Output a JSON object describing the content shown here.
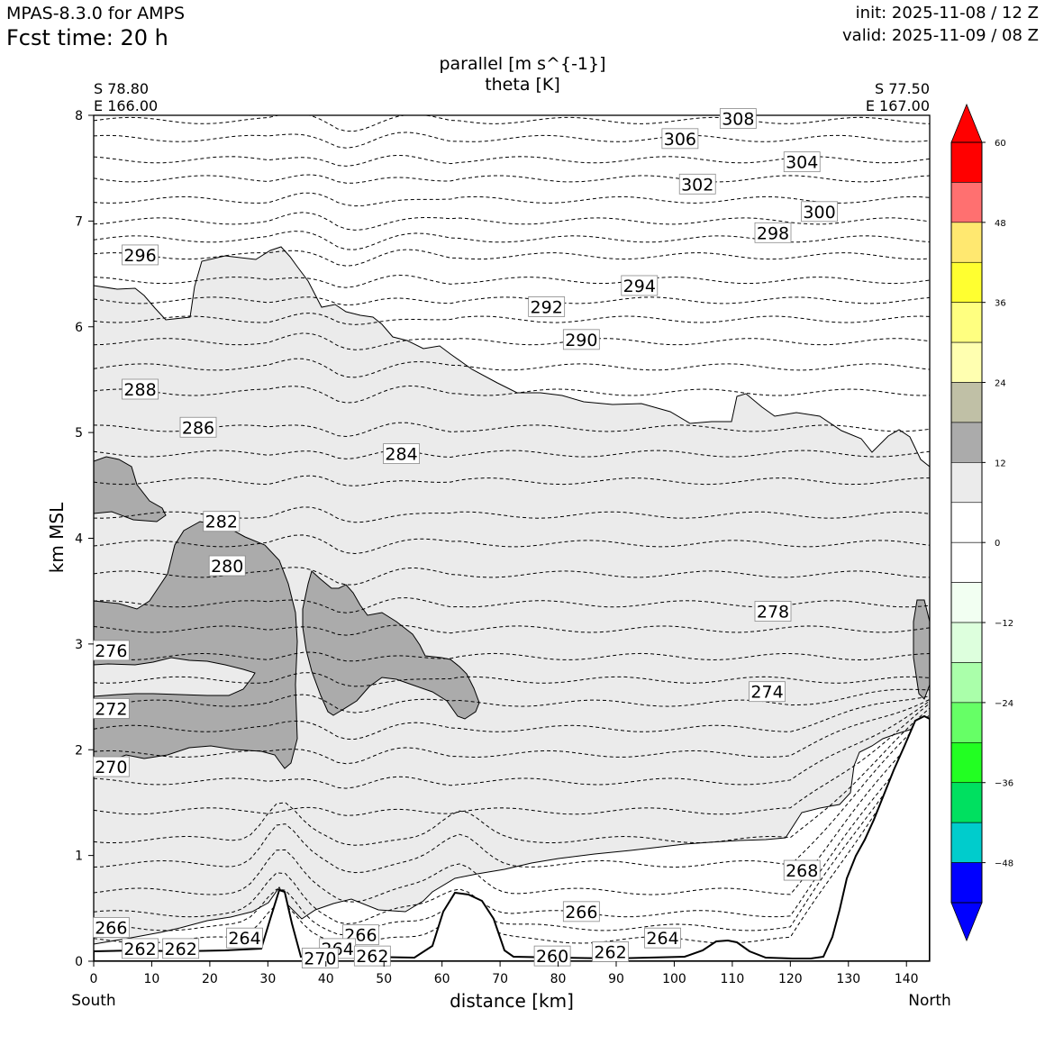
{
  "header": {
    "model": "MPAS-8.3.0 for AMPS",
    "fcst_time": "Fcst time:   20 h",
    "init": "init: 2025-11-08 / 12 Z",
    "valid": "valid: 2025-11-09 / 08 Z"
  },
  "colors": {
    "shade_light": "#ebebeb",
    "shade_dark": "#ababab",
    "terrain_line": "#000000"
  },
  "chart_data": {
    "type": "cross-section contour",
    "title": "parallel [m s^{-1}]",
    "subtitle": "theta [K]",
    "xlabel": "distance [km]",
    "ylabel": "km MSL",
    "xlim": [
      0,
      144
    ],
    "ylim": [
      0,
      8
    ],
    "xticks": [
      "0",
      "10",
      "20",
      "30",
      "40",
      "50",
      "60",
      "70",
      "80",
      "90",
      "100",
      "110",
      "120",
      "130",
      "140"
    ],
    "yticks": [
      "0",
      "1",
      "2",
      "3",
      "4",
      "5",
      "6",
      "7",
      "8"
    ],
    "left_point": {
      "lat": "S 78.80",
      "lon": "E 166.00",
      "end": "South"
    },
    "right_point": {
      "lat": "S 77.50",
      "lon": "E 167.00",
      "end": "North"
    },
    "colorbar": {
      "ticks": [
        "60",
        "48",
        "36",
        "24",
        "12",
        "0",
        "−12",
        "−24",
        "−36",
        "−48"
      ],
      "colors": [
        "#ff0000",
        "#ff7070",
        "#ffe870",
        "#ffff30",
        "#ffff80",
        "#ffffb0",
        "#c0c0a6",
        "#ababab",
        "#ebebeb",
        "#ffffff",
        "#ffffff",
        "#f2fff2",
        "#ddffdd",
        "#aaffaa",
        "#66ff66",
        "#22ff22",
        "#00e060",
        "#00cccc",
        "#0000ff"
      ],
      "over_color": "#ff0000",
      "under_color": "#0000ff"
    },
    "theta_labels": [
      {
        "text": "308",
        "x": 111,
        "z": 7.97
      },
      {
        "text": "306",
        "x": 101,
        "z": 7.78
      },
      {
        "text": "304",
        "x": 122,
        "z": 7.56
      },
      {
        "text": "302",
        "x": 104,
        "z": 7.35
      },
      {
        "text": "300",
        "x": 125,
        "z": 7.09
      },
      {
        "text": "298",
        "x": 117,
        "z": 6.89
      },
      {
        "text": "296",
        "x": 8,
        "z": 6.68
      },
      {
        "text": "294",
        "x": 94,
        "z": 6.39
      },
      {
        "text": "292",
        "x": 78,
        "z": 6.19
      },
      {
        "text": "290",
        "x": 84,
        "z": 5.88
      },
      {
        "text": "288",
        "x": 8,
        "z": 5.41
      },
      {
        "text": "286",
        "x": 18,
        "z": 5.05
      },
      {
        "text": "284",
        "x": 53,
        "z": 4.8
      },
      {
        "text": "282",
        "x": 22,
        "z": 4.16
      },
      {
        "text": "280",
        "x": 23,
        "z": 3.74
      },
      {
        "text": "278",
        "x": 117,
        "z": 3.31
      },
      {
        "text": "276",
        "x": 3,
        "z": 2.94
      },
      {
        "text": "274",
        "x": 116,
        "z": 2.55
      },
      {
        "text": "272",
        "x": 3,
        "z": 2.39
      },
      {
        "text": "270",
        "x": 3,
        "z": 1.84
      },
      {
        "text": "268",
        "x": 122,
        "z": 0.86
      },
      {
        "text": "266",
        "x": 3,
        "z": 0.32
      },
      {
        "text": "266",
        "x": 84,
        "z": 0.47
      },
      {
        "text": "266",
        "x": 46,
        "z": 0.25
      },
      {
        "text": "264",
        "x": 26,
        "z": 0.22
      },
      {
        "text": "264",
        "x": 98,
        "z": 0.22
      },
      {
        "text": "264",
        "x": 42,
        "z": 0.12
      },
      {
        "text": "262",
        "x": 8,
        "z": 0.12
      },
      {
        "text": "262",
        "x": 15,
        "z": 0.12
      },
      {
        "text": "262",
        "x": 48,
        "z": 0.05
      },
      {
        "text": "262",
        "x": 89,
        "z": 0.09
      },
      {
        "text": "260",
        "x": 79,
        "z": 0.05
      },
      {
        "text": "270",
        "x": 39,
        "z": 0.03
      }
    ]
  }
}
